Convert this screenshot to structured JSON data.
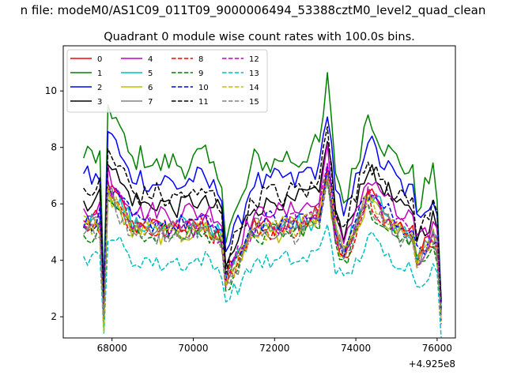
{
  "chart_data": {
    "type": "line",
    "suptitle": "n file: modeM0/AS1C09_011T09_9000006494_53388cztM0_level2_quad_clean",
    "title": "Quadrant 0 module wise count rates with 100.0s bins.",
    "xlabel": "",
    "ylabel": "",
    "x_offset_label": "+4.925e8",
    "xlim": [
      66800,
      76450
    ],
    "ylim": [
      1.25,
      11.6
    ],
    "x_ticks": [
      68000,
      70000,
      72000,
      74000,
      76000
    ],
    "x_tick_labels": [
      "68000",
      "70000",
      "72000",
      "74000",
      "76000"
    ],
    "y_ticks": [
      2,
      4,
      6,
      8,
      10
    ],
    "y_tick_labels": [
      "2",
      "4",
      "6",
      "8",
      "10"
    ],
    "grid": false,
    "legend_placement": "top-left",
    "x_start": 67300,
    "x_step": 100,
    "series": [
      {
        "name": "0",
        "color": "#ff0000",
        "dash": "solid",
        "base": 5.3,
        "amp": 0.35
      },
      {
        "name": "1",
        "color": "#008000",
        "dash": "solid",
        "base": 7.6,
        "amp": 0.45
      },
      {
        "name": "2",
        "color": "#0000ff",
        "dash": "solid",
        "base": 6.9,
        "amp": 0.4
      },
      {
        "name": "3",
        "color": "#000000",
        "dash": "solid",
        "base": 6.1,
        "amp": 0.35
      },
      {
        "name": "4",
        "color": "#bf00bf",
        "dash": "solid",
        "base": 5.8,
        "amp": 0.35
      },
      {
        "name": "5",
        "color": "#00bfbf",
        "dash": "solid",
        "base": 5.3,
        "amp": 0.35
      },
      {
        "name": "6",
        "color": "#bfbf00",
        "dash": "solid",
        "base": 5.1,
        "amp": 0.35
      },
      {
        "name": "7",
        "color": "#808080",
        "dash": "solid",
        "base": 5.2,
        "amp": 0.35
      },
      {
        "name": "8",
        "color": "#ff0000",
        "dash": "dashed",
        "base": 5.2,
        "amp": 0.35
      },
      {
        "name": "9",
        "color": "#008000",
        "dash": "dashed",
        "base": 5.0,
        "amp": 0.35
      },
      {
        "name": "10",
        "color": "#0000ff",
        "dash": "dashed",
        "base": 5.4,
        "amp": 0.35
      },
      {
        "name": "11",
        "color": "#000000",
        "dash": "dashed",
        "base": 6.4,
        "amp": 0.4
      },
      {
        "name": "12",
        "color": "#bf00bf",
        "dash": "dashed",
        "base": 5.3,
        "amp": 0.35
      },
      {
        "name": "13",
        "color": "#00bfbf",
        "dash": "dashed",
        "base": 4.0,
        "amp": 0.3
      },
      {
        "name": "14",
        "color": "#bfbf00",
        "dash": "dashed",
        "base": 5.2,
        "amp": 0.35
      },
      {
        "name": "15",
        "color": "#808080",
        "dash": "dashed",
        "base": 5.0,
        "amp": 0.35
      }
    ],
    "profile": {
      "x": [
        67300,
        67700,
        67800,
        67900,
        68500,
        69500,
        70300,
        70700,
        70800,
        71500,
        72500,
        73100,
        73300,
        73500,
        73700,
        74300,
        75000,
        75400,
        75500,
        75900,
        76000,
        76100
      ],
      "factor": [
        1.0,
        1.02,
        0.35,
        1.25,
        1.0,
        0.97,
        1.0,
        0.92,
        0.62,
        0.98,
        1.0,
        1.05,
        1.38,
        0.95,
        0.78,
        1.2,
        0.98,
        0.94,
        0.78,
        0.92,
        0.85,
        0.38
      ]
    }
  }
}
